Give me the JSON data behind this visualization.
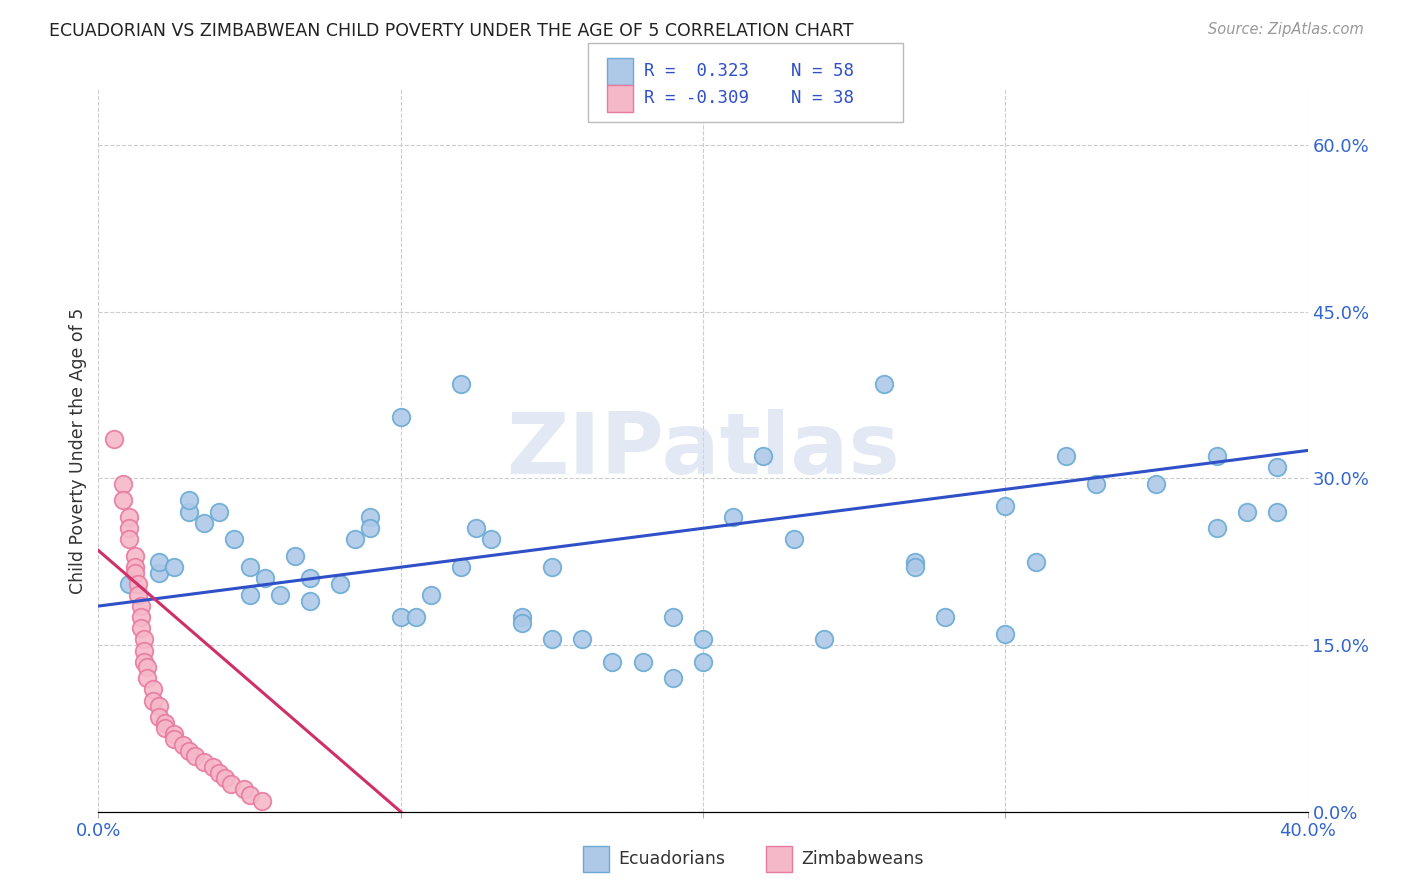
{
  "title": "ECUADORIAN VS ZIMBABWEAN CHILD POVERTY UNDER THE AGE OF 5 CORRELATION CHART",
  "source": "Source: ZipAtlas.com",
  "ylabel": "Child Poverty Under the Age of 5",
  "xlim": [
    0.0,
    0.4
  ],
  "ylim": [
    0.0,
    0.65
  ],
  "y_ticks_right": [
    0.0,
    0.15,
    0.3,
    0.45,
    0.6
  ],
  "y_tick_labels_right": [
    "0.0%",
    "15.0%",
    "30.0%",
    "45.0%",
    "60.0%"
  ],
  "x_tick_positions": [
    0.0,
    0.1,
    0.2,
    0.3,
    0.4
  ],
  "x_tick_labels": [
    "0.0%",
    "",
    "",
    "",
    "40.0%"
  ],
  "blue_fill": "#aec9e8",
  "blue_edge": "#6aaad4",
  "pink_fill": "#f5b8c8",
  "pink_edge": "#e87aa0",
  "trend_blue": "#3050c8",
  "trend_pink": "#d0306a",
  "watermark": "ZIPatlas",
  "legend_blue_fill": "#aec9e8",
  "legend_blue_edge": "#6aaad4",
  "legend_pink_fill": "#f5b8c8",
  "legend_pink_edge": "#e87aa0",
  "legend_text_color": "#3050c8",
  "blue_points": [
    [
      0.01,
      0.205
    ],
    [
      0.02,
      0.215
    ],
    [
      0.02,
      0.225
    ],
    [
      0.025,
      0.22
    ],
    [
      0.03,
      0.27
    ],
    [
      0.03,
      0.28
    ],
    [
      0.035,
      0.26
    ],
    [
      0.04,
      0.27
    ],
    [
      0.045,
      0.245
    ],
    [
      0.05,
      0.22
    ],
    [
      0.05,
      0.195
    ],
    [
      0.055,
      0.21
    ],
    [
      0.06,
      0.195
    ],
    [
      0.065,
      0.23
    ],
    [
      0.07,
      0.19
    ],
    [
      0.07,
      0.21
    ],
    [
      0.08,
      0.205
    ],
    [
      0.085,
      0.245
    ],
    [
      0.09,
      0.265
    ],
    [
      0.09,
      0.255
    ],
    [
      0.1,
      0.355
    ],
    [
      0.1,
      0.175
    ],
    [
      0.105,
      0.175
    ],
    [
      0.11,
      0.195
    ],
    [
      0.12,
      0.385
    ],
    [
      0.12,
      0.22
    ],
    [
      0.125,
      0.255
    ],
    [
      0.13,
      0.245
    ],
    [
      0.14,
      0.175
    ],
    [
      0.14,
      0.17
    ],
    [
      0.15,
      0.22
    ],
    [
      0.15,
      0.155
    ],
    [
      0.16,
      0.155
    ],
    [
      0.17,
      0.135
    ],
    [
      0.18,
      0.135
    ],
    [
      0.19,
      0.12
    ],
    [
      0.19,
      0.175
    ],
    [
      0.2,
      0.135
    ],
    [
      0.2,
      0.155
    ],
    [
      0.21,
      0.265
    ],
    [
      0.22,
      0.32
    ],
    [
      0.23,
      0.245
    ],
    [
      0.24,
      0.155
    ],
    [
      0.26,
      0.385
    ],
    [
      0.27,
      0.225
    ],
    [
      0.27,
      0.22
    ],
    [
      0.28,
      0.175
    ],
    [
      0.3,
      0.16
    ],
    [
      0.3,
      0.275
    ],
    [
      0.31,
      0.225
    ],
    [
      0.32,
      0.32
    ],
    [
      0.33,
      0.295
    ],
    [
      0.35,
      0.295
    ],
    [
      0.37,
      0.32
    ],
    [
      0.37,
      0.255
    ],
    [
      0.38,
      0.27
    ],
    [
      0.39,
      0.31
    ],
    [
      0.39,
      0.27
    ]
  ],
  "pink_points": [
    [
      0.005,
      0.335
    ],
    [
      0.008,
      0.295
    ],
    [
      0.008,
      0.28
    ],
    [
      0.01,
      0.265
    ],
    [
      0.01,
      0.255
    ],
    [
      0.01,
      0.245
    ],
    [
      0.012,
      0.23
    ],
    [
      0.012,
      0.22
    ],
    [
      0.012,
      0.215
    ],
    [
      0.013,
      0.205
    ],
    [
      0.013,
      0.195
    ],
    [
      0.014,
      0.185
    ],
    [
      0.014,
      0.175
    ],
    [
      0.014,
      0.165
    ],
    [
      0.015,
      0.155
    ],
    [
      0.015,
      0.145
    ],
    [
      0.015,
      0.135
    ],
    [
      0.016,
      0.13
    ],
    [
      0.016,
      0.12
    ],
    [
      0.018,
      0.11
    ],
    [
      0.018,
      0.1
    ],
    [
      0.02,
      0.095
    ],
    [
      0.02,
      0.085
    ],
    [
      0.022,
      0.08
    ],
    [
      0.022,
      0.075
    ],
    [
      0.025,
      0.07
    ],
    [
      0.025,
      0.065
    ],
    [
      0.028,
      0.06
    ],
    [
      0.03,
      0.055
    ],
    [
      0.032,
      0.05
    ],
    [
      0.035,
      0.045
    ],
    [
      0.038,
      0.04
    ],
    [
      0.04,
      0.035
    ],
    [
      0.042,
      0.03
    ],
    [
      0.044,
      0.025
    ],
    [
      0.048,
      0.02
    ],
    [
      0.05,
      0.015
    ],
    [
      0.054,
      0.01
    ]
  ],
  "blue_trend_x": [
    0.0,
    0.4
  ],
  "blue_trend_y": [
    0.185,
    0.325
  ],
  "pink_trend_x": [
    0.0,
    0.1
  ],
  "pink_trend_y": [
    0.235,
    0.0
  ]
}
